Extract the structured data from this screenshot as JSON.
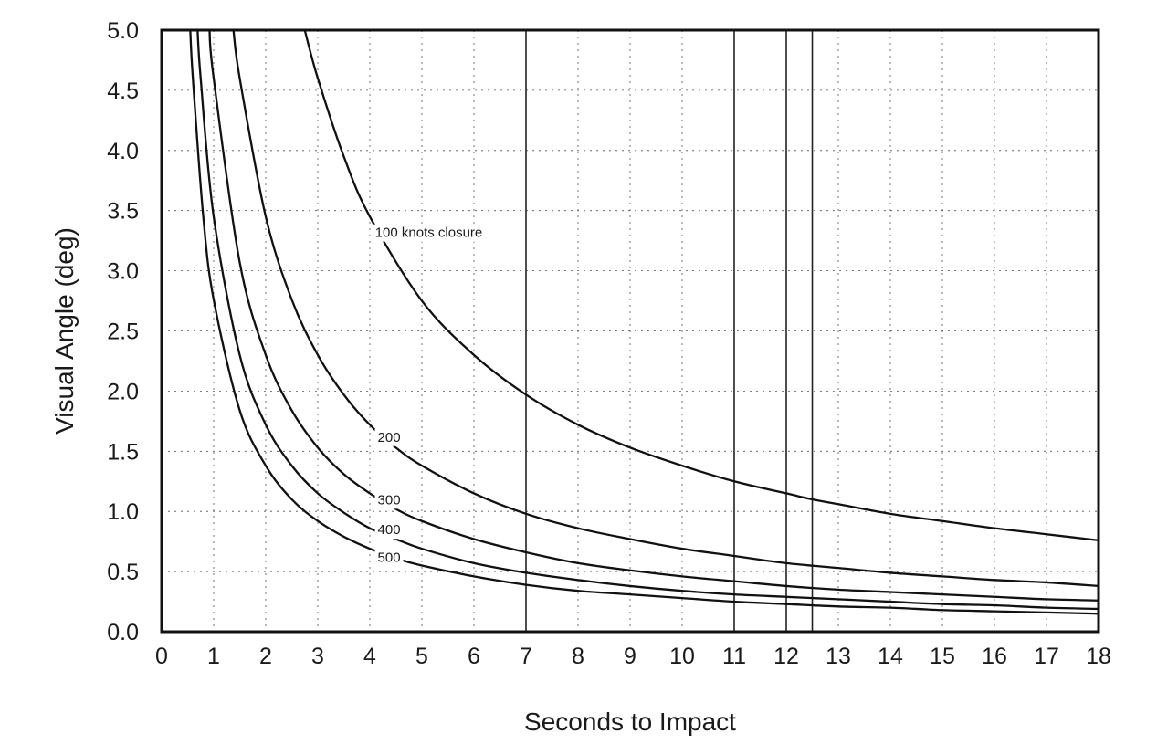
{
  "chart_data": {
    "type": "line",
    "title": "",
    "xlabel": "Seconds to Impact",
    "ylabel": "Visual Angle (deg)",
    "xlim": [
      0,
      18
    ],
    "ylim": [
      0,
      5
    ],
    "x_ticks": [
      "0",
      "1",
      "2",
      "3",
      "4",
      "5",
      "6",
      "7",
      "8",
      "9",
      "10",
      "11",
      "12",
      "13",
      "14",
      "15",
      "16",
      "17",
      "18"
    ],
    "y_ticks": [
      "0.0",
      "0.5",
      "1.0",
      "1.5",
      "2.0",
      "2.5",
      "3.0",
      "3.5",
      "4.0",
      "4.5",
      "5.0"
    ],
    "grid": "dotted",
    "reference_lines_x": [
      7,
      11,
      12,
      12.5
    ],
    "series": [
      {
        "label": "100 knots closure",
        "label_at": [
          4.1,
          3.28
        ],
        "points": [
          [
            2.75,
            5.0
          ],
          [
            3,
            4.6
          ],
          [
            3.5,
            3.95
          ],
          [
            4,
            3.45
          ],
          [
            5,
            2.75
          ],
          [
            6,
            2.3
          ],
          [
            7,
            1.97
          ],
          [
            8,
            1.72
          ],
          [
            9,
            1.53
          ],
          [
            10,
            1.38
          ],
          [
            11,
            1.25
          ],
          [
            12,
            1.15
          ],
          [
            12.5,
            1.1
          ],
          [
            13,
            1.06
          ],
          [
            14,
            0.98
          ],
          [
            15,
            0.92
          ],
          [
            16,
            0.86
          ],
          [
            17,
            0.81
          ],
          [
            18,
            0.76
          ]
        ]
      },
      {
        "label": "200",
        "label_at": [
          4.15,
          1.58
        ],
        "points": [
          [
            1.38,
            5.0
          ],
          [
            1.5,
            4.6
          ],
          [
            2,
            3.45
          ],
          [
            2.5,
            2.76
          ],
          [
            3,
            2.3
          ],
          [
            3.5,
            1.97
          ],
          [
            4,
            1.72
          ],
          [
            4.5,
            1.53
          ],
          [
            5,
            1.38
          ],
          [
            6,
            1.15
          ],
          [
            7,
            0.98
          ],
          [
            8,
            0.86
          ],
          [
            9,
            0.77
          ],
          [
            10,
            0.69
          ],
          [
            11,
            0.63
          ],
          [
            12,
            0.57
          ],
          [
            13,
            0.53
          ],
          [
            14,
            0.49
          ],
          [
            15,
            0.46
          ],
          [
            16,
            0.43
          ],
          [
            17,
            0.41
          ],
          [
            18,
            0.38
          ]
        ]
      },
      {
        "label": "300",
        "label_at": [
          4.15,
          1.06
        ],
        "points": [
          [
            0.92,
            5.0
          ],
          [
            1,
            4.6
          ],
          [
            1.5,
            3.07
          ],
          [
            2,
            2.3
          ],
          [
            2.5,
            1.84
          ],
          [
            3,
            1.53
          ],
          [
            3.5,
            1.31
          ],
          [
            4,
            1.15
          ],
          [
            4.5,
            1.02
          ],
          [
            5,
            0.92
          ],
          [
            6,
            0.77
          ],
          [
            7,
            0.66
          ],
          [
            8,
            0.57
          ],
          [
            9,
            0.51
          ],
          [
            10,
            0.46
          ],
          [
            11,
            0.42
          ],
          [
            12,
            0.38
          ],
          [
            13,
            0.35
          ],
          [
            14,
            0.33
          ],
          [
            15,
            0.31
          ],
          [
            16,
            0.29
          ],
          [
            17,
            0.27
          ],
          [
            18,
            0.26
          ]
        ]
      },
      {
        "label": "400",
        "label_at": [
          4.15,
          0.81
        ],
        "points": [
          [
            0.69,
            5.0
          ],
          [
            0.75,
            4.6
          ],
          [
            1,
            3.45
          ],
          [
            1.5,
            2.3
          ],
          [
            2,
            1.72
          ],
          [
            2.5,
            1.38
          ],
          [
            3,
            1.15
          ],
          [
            3.5,
            0.99
          ],
          [
            4,
            0.86
          ],
          [
            4.5,
            0.77
          ],
          [
            5,
            0.69
          ],
          [
            6,
            0.57
          ],
          [
            7,
            0.49
          ],
          [
            8,
            0.43
          ],
          [
            9,
            0.38
          ],
          [
            10,
            0.34
          ],
          [
            11,
            0.31
          ],
          [
            12,
            0.29
          ],
          [
            13,
            0.27
          ],
          [
            14,
            0.25
          ],
          [
            15,
            0.23
          ],
          [
            16,
            0.22
          ],
          [
            17,
            0.2
          ],
          [
            18,
            0.19
          ]
        ]
      },
      {
        "label": "500",
        "label_at": [
          4.15,
          0.58
        ],
        "points": [
          [
            0.55,
            5.0
          ],
          [
            0.6,
            4.6
          ],
          [
            0.8,
            3.45
          ],
          [
            1,
            2.76
          ],
          [
            1.5,
            1.84
          ],
          [
            2,
            1.38
          ],
          [
            2.5,
            1.1
          ],
          [
            3,
            0.92
          ],
          [
            3.5,
            0.79
          ],
          [
            4,
            0.69
          ],
          [
            4.5,
            0.61
          ],
          [
            5,
            0.55
          ],
          [
            6,
            0.46
          ],
          [
            7,
            0.39
          ],
          [
            8,
            0.34
          ],
          [
            9,
            0.31
          ],
          [
            10,
            0.28
          ],
          [
            11,
            0.25
          ],
          [
            12,
            0.23
          ],
          [
            13,
            0.21
          ],
          [
            14,
            0.2
          ],
          [
            15,
            0.18
          ],
          [
            16,
            0.17
          ],
          [
            17,
            0.16
          ],
          [
            18,
            0.15
          ]
        ]
      }
    ]
  }
}
